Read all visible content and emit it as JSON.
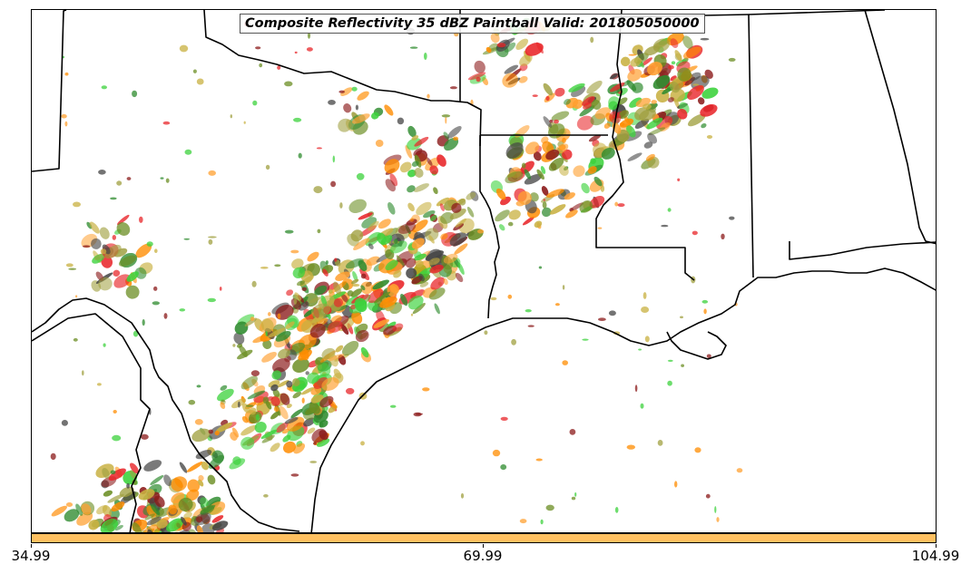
{
  "map": {
    "title": "Composite Reflectivity 35 dBZ Paintball Valid: 201805050000",
    "colorbar": {
      "color": "#ffc060",
      "ticks": [
        "34.99",
        "69.99",
        "104.99"
      ]
    },
    "paintball_colors": [
      "#e8262a",
      "#ff8c00",
      "#6b8e23",
      "#2e8b2e",
      "#3cd23c",
      "#8b1a1a",
      "#a0a040",
      "#ffa030",
      "#444444",
      "#c8b040"
    ],
    "features": [
      "state-borders",
      "coastline",
      "river-borders",
      "radar-paintball-swaths"
    ]
  }
}
